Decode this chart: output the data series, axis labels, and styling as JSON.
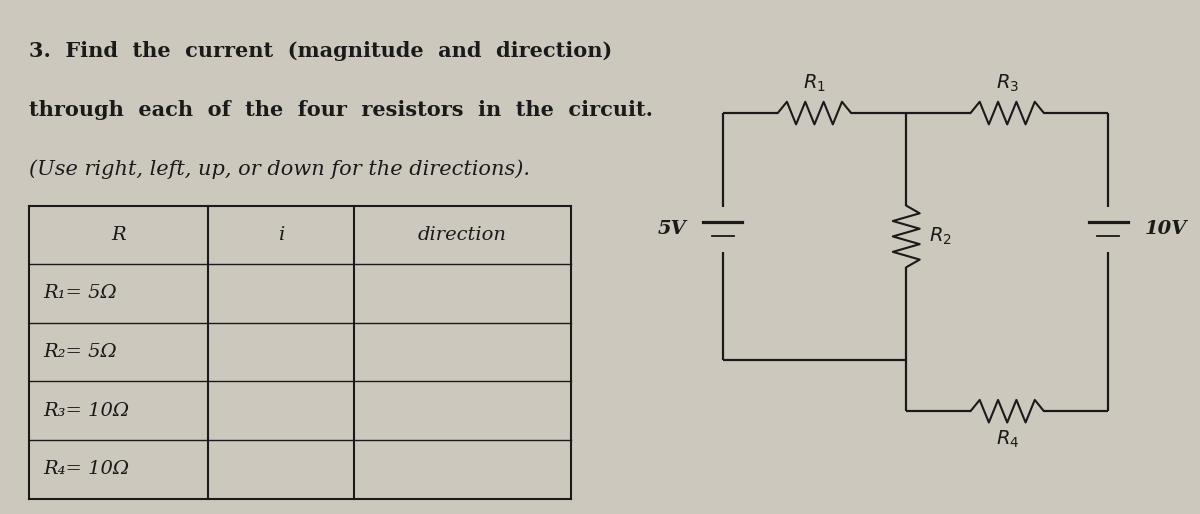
{
  "bg_color": "#cdc8be",
  "line_color": "#1a1a1a",
  "text_color": "#1a1a1a",
  "title_lines": [
    "3.  Find  the  current  (magnitude  and  direction)",
    "through  each  of  the  four  resistors  in  the  circuit.",
    "(Use right, left, up, or down for the directions)."
  ],
  "table_headers": [
    "R",
    "i",
    "direction"
  ],
  "table_rows": [
    "R₁= 5Ω",
    "R₂= 5Ω",
    "R₃= 10Ω",
    "R₄= 10Ω"
  ],
  "font_size_title": 15,
  "font_size_table": 14,
  "font_size_circuit": 14,
  "circuit": {
    "R1_label": "$R_1$",
    "R2_label": "$R_2$",
    "R3_label": "$R_3$",
    "R4_label": "$R_4$",
    "V1_label": "5V",
    "V2_label": "10V"
  }
}
